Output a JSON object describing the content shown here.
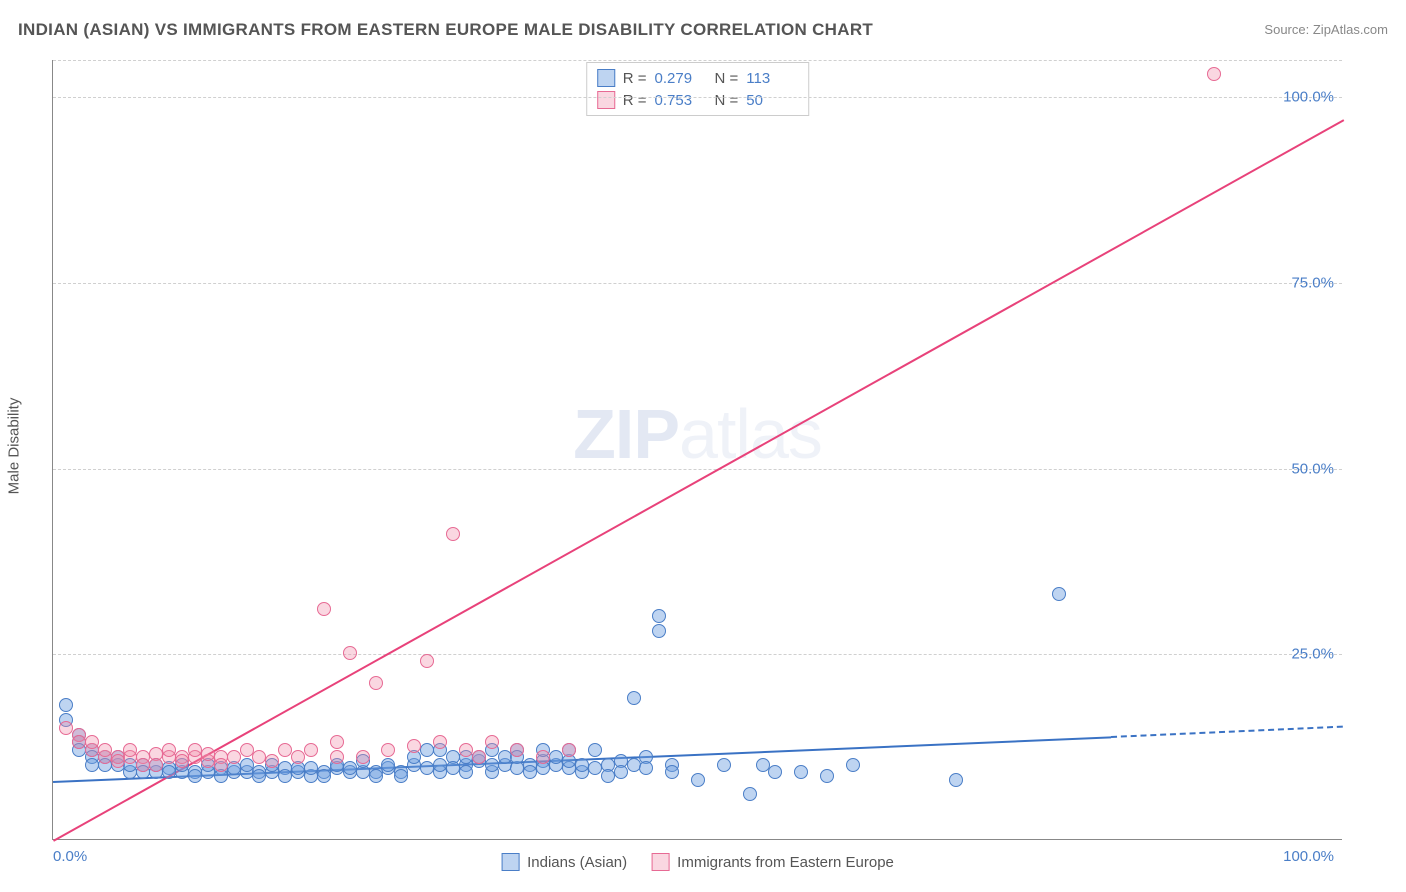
{
  "title": "INDIAN (ASIAN) VS IMMIGRANTS FROM EASTERN EUROPE MALE DISABILITY CORRELATION CHART",
  "source_label": "Source:",
  "source_link": "ZipAtlas.com",
  "ylabel": "Male Disability",
  "watermark_a": "ZIP",
  "watermark_b": "atlas",
  "stats_legend": {
    "rows": [
      {
        "swatch": "blue",
        "r_label": "R =",
        "r": "0.279",
        "n_label": "N =",
        "n": "113"
      },
      {
        "swatch": "pink",
        "r_label": "R =",
        "r": "0.753",
        "n_label": "N =",
        "n": "50"
      }
    ]
  },
  "series_legend": {
    "items": [
      {
        "swatch": "blue",
        "label": "Indians (Asian)"
      },
      {
        "swatch": "pink",
        "label": "Immigrants from Eastern Europe"
      }
    ]
  },
  "colors": {
    "blue_fill": "rgba(110,160,225,0.45)",
    "blue_stroke": "#4a7ec7",
    "pink_fill": "rgba(240,140,170,0.35)",
    "pink_stroke": "#e76a94",
    "trend_blue": "#3a72c4",
    "trend_pink": "#e8427a",
    "grid": "#d0d0d0",
    "axis": "#888888",
    "text": "#555555",
    "tick": "#4a7ec7"
  },
  "chart": {
    "type": "scatter",
    "xlim": [
      0,
      100
    ],
    "ylim": [
      0,
      105
    ],
    "yticks": [
      {
        "v": 25,
        "label": "25.0%"
      },
      {
        "v": 50,
        "label": "50.0%"
      },
      {
        "v": 75,
        "label": "75.0%"
      },
      {
        "v": 100,
        "label": "100.0%"
      }
    ],
    "xticks": [
      {
        "v": 0,
        "label": "0.0%"
      },
      {
        "v": 100,
        "label": "100.0%"
      }
    ],
    "marker_size": 14,
    "series": [
      {
        "name": "Indians (Asian)",
        "color": "blue",
        "trend": {
          "x1": 0,
          "y1": 8.0,
          "x2": 82,
          "y2": 14.0,
          "dash_from": 82,
          "dash_to": 100,
          "y_dash_end": 15.4
        },
        "points": [
          [
            1,
            18
          ],
          [
            1,
            16
          ],
          [
            2,
            14
          ],
          [
            2,
            13
          ],
          [
            2,
            12
          ],
          [
            3,
            12
          ],
          [
            3,
            11
          ],
          [
            3,
            10
          ],
          [
            4,
            11
          ],
          [
            4,
            10
          ],
          [
            5,
            10
          ],
          [
            5,
            11
          ],
          [
            6,
            9
          ],
          [
            6,
            10
          ],
          [
            7,
            10
          ],
          [
            7,
            9
          ],
          [
            8,
            9
          ],
          [
            8,
            10
          ],
          [
            9,
            9.5
          ],
          [
            9,
            9
          ],
          [
            10,
            9
          ],
          [
            10,
            10
          ],
          [
            11,
            9
          ],
          [
            11,
            8.5
          ],
          [
            12,
            9
          ],
          [
            12,
            10
          ],
          [
            13,
            9.5
          ],
          [
            13,
            8.5
          ],
          [
            14,
            9
          ],
          [
            14,
            9.5
          ],
          [
            15,
            9
          ],
          [
            15,
            10
          ],
          [
            16,
            9
          ],
          [
            16,
            8.5
          ],
          [
            17,
            9
          ],
          [
            17,
            10
          ],
          [
            18,
            9.5
          ],
          [
            18,
            8.5
          ],
          [
            19,
            9
          ],
          [
            19,
            9.5
          ],
          [
            20,
            8.5
          ],
          [
            20,
            9.5
          ],
          [
            21,
            9
          ],
          [
            21,
            8.5
          ],
          [
            22,
            9.5
          ],
          [
            22,
            10
          ],
          [
            23,
            9
          ],
          [
            23,
            9.5
          ],
          [
            24,
            9
          ],
          [
            24,
            10.5
          ],
          [
            25,
            9
          ],
          [
            25,
            8.5
          ],
          [
            26,
            9.5
          ],
          [
            26,
            10
          ],
          [
            27,
            9
          ],
          [
            27,
            8.5
          ],
          [
            28,
            10
          ],
          [
            28,
            11
          ],
          [
            29,
            9.5
          ],
          [
            29,
            12
          ],
          [
            30,
            9
          ],
          [
            30,
            10
          ],
          [
            31,
            11
          ],
          [
            31,
            9.5
          ],
          [
            32,
            10
          ],
          [
            32,
            9
          ],
          [
            33,
            10.5
          ],
          [
            33,
            11
          ],
          [
            34,
            9
          ],
          [
            34,
            10
          ],
          [
            35,
            10
          ],
          [
            35,
            11
          ],
          [
            36,
            9.5
          ],
          [
            36,
            12
          ],
          [
            37,
            10
          ],
          [
            37,
            9
          ],
          [
            38,
            10.5
          ],
          [
            38,
            9.5
          ],
          [
            39,
            10
          ],
          [
            39,
            11
          ],
          [
            40,
            9.5
          ],
          [
            40,
            10.5
          ],
          [
            41,
            9
          ],
          [
            41,
            10
          ],
          [
            42,
            9.5
          ],
          [
            42,
            12
          ],
          [
            43,
            10
          ],
          [
            43,
            8.5
          ],
          [
            44,
            10.5
          ],
          [
            44,
            9
          ],
          [
            45,
            19
          ],
          [
            45,
            10
          ],
          [
            46,
            11
          ],
          [
            46,
            9.5
          ],
          [
            47,
            30
          ],
          [
            47,
            28
          ],
          [
            48,
            10
          ],
          [
            48,
            9
          ],
          [
            50,
            8
          ],
          [
            52,
            10
          ],
          [
            54,
            6
          ],
          [
            55,
            10
          ],
          [
            56,
            9
          ],
          [
            58,
            9
          ],
          [
            60,
            8.5
          ],
          [
            62,
            10
          ],
          [
            70,
            8
          ],
          [
            78,
            33
          ],
          [
            30,
            12
          ],
          [
            32,
            11
          ],
          [
            34,
            12
          ],
          [
            36,
            11
          ],
          [
            38,
            12
          ],
          [
            40,
            12
          ]
        ]
      },
      {
        "name": "Immigrants from Eastern Europe",
        "color": "pink",
        "trend": {
          "x1": 0,
          "y1": 0,
          "x2": 100,
          "y2": 97
        },
        "points": [
          [
            1,
            15
          ],
          [
            2,
            14
          ],
          [
            2,
            13
          ],
          [
            3,
            12
          ],
          [
            3,
            13
          ],
          [
            4,
            11
          ],
          [
            4,
            12
          ],
          [
            5,
            11
          ],
          [
            5,
            10.5
          ],
          [
            6,
            11
          ],
          [
            6,
            12
          ],
          [
            7,
            11
          ],
          [
            7,
            10
          ],
          [
            8,
            11.5
          ],
          [
            8,
            10
          ],
          [
            9,
            11
          ],
          [
            9,
            12
          ],
          [
            10,
            11
          ],
          [
            10,
            10.5
          ],
          [
            11,
            11
          ],
          [
            11,
            12
          ],
          [
            12,
            10.5
          ],
          [
            12,
            11.5
          ],
          [
            13,
            11
          ],
          [
            13,
            10
          ],
          [
            14,
            11
          ],
          [
            15,
            12
          ],
          [
            16,
            11
          ],
          [
            17,
            10.5
          ],
          [
            18,
            12
          ],
          [
            19,
            11
          ],
          [
            20,
            12
          ],
          [
            21,
            31
          ],
          [
            22,
            13
          ],
          [
            23,
            25
          ],
          [
            24,
            11
          ],
          [
            25,
            21
          ],
          [
            26,
            12
          ],
          [
            28,
            12.5
          ],
          [
            29,
            24
          ],
          [
            30,
            13
          ],
          [
            31,
            41
          ],
          [
            32,
            12
          ],
          [
            33,
            11
          ],
          [
            34,
            13
          ],
          [
            36,
            12
          ],
          [
            38,
            11
          ],
          [
            40,
            12
          ],
          [
            90,
            103
          ],
          [
            22,
            11
          ]
        ]
      }
    ]
  }
}
